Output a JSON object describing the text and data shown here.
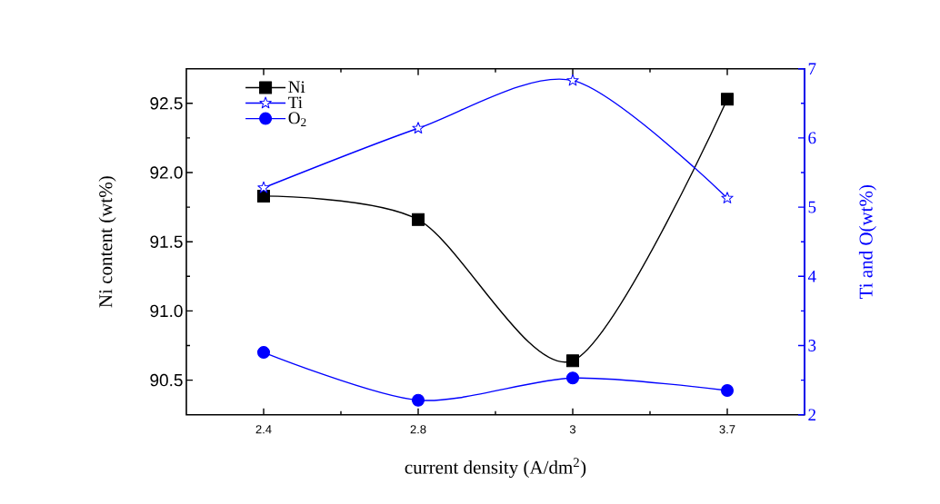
{
  "chart_data": {
    "type": "line",
    "xlabel": "current density (A/dm$^{2}$)",
    "ylabel": "Ni content (wt%)",
    "y2label": "Ti and O(wt%)",
    "categories": [
      "2.4",
      "2.8",
      "3",
      "3.7"
    ],
    "ylim": [
      90.25,
      92.75
    ],
    "yticks": [
      90.5,
      {
        "value": 91,
        "label": "91.0"
      },
      91.5,
      {
        "value": 92,
        "label": "92.0"
      },
      92.5
    ],
    "y2lim": [
      2,
      7
    ],
    "y2ticks": [
      2,
      3,
      4,
      5,
      6,
      7
    ],
    "series": [
      {
        "name": "Ni",
        "color": "#000000",
        "marker": "square",
        "values": [
          91.83,
          91.66,
          90.64,
          92.53
        ]
      },
      {
        "name": "Ti",
        "color": "#0000ff",
        "marker": "star",
        "axis": "y2",
        "values": [
          5.28,
          6.14,
          6.83,
          5.13
        ]
      },
      {
        "name": "O$_{2}$",
        "color": "#0000ff",
        "marker": "circle",
        "axis": "y2",
        "values": [
          2.9,
          2.21,
          2.53,
          2.35
        ]
      }
    ],
    "legend": "top left",
    "line_style": "solid"
  }
}
